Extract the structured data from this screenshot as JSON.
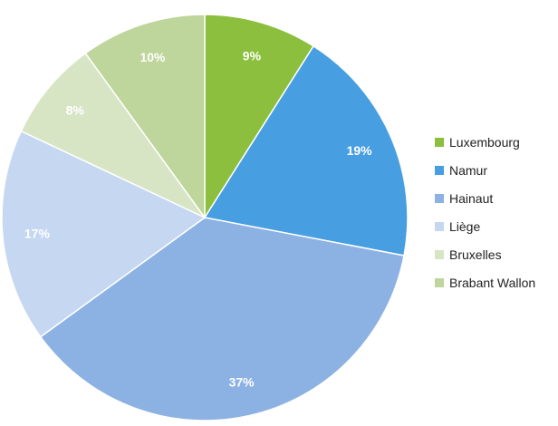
{
  "chart_data": {
    "type": "pie",
    "title": "",
    "start_angle_deg": 0,
    "direction": "clockwise",
    "legend_position": "right",
    "slices": [
      {
        "name": "Luxembourg",
        "value": 9,
        "label": "9%",
        "color": "#8bbf3d"
      },
      {
        "name": "Namur",
        "value": 19,
        "label": "19%",
        "color": "#479ee1"
      },
      {
        "name": "Hainaut",
        "value": 37,
        "label": "37%",
        "color": "#8cb2e3"
      },
      {
        "name": "Liège",
        "value": 17,
        "label": "17%",
        "color": "#c5d7f1"
      },
      {
        "name": "Bruxelles",
        "value": 8,
        "label": "8%",
        "color": "#d8e5c5"
      },
      {
        "name": "Brabant Wallon",
        "value": 10,
        "label": "10%",
        "color": "#bed59c"
      }
    ]
  }
}
